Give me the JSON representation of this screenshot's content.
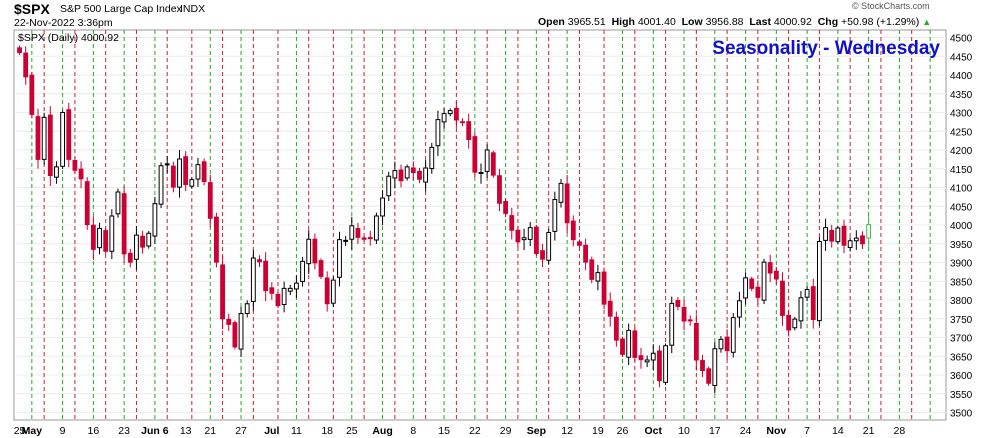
{
  "header": {
    "symbol": "$SPX",
    "name": "S&P 500 Large Cap Index",
    "exchange": "INDX",
    "datetime": "22-Nov-2022 3:36pm",
    "open_label": "Open",
    "open": "3965.51",
    "high_label": "High",
    "high": "4001.40",
    "low_label": "Low",
    "low": "3956.88",
    "last_label": "Last",
    "last": "4000.92",
    "chg_label": "Chg",
    "chg": "+50.98 (+1.29%)",
    "up_arrow": "▲",
    "watermark": "© StockCharts.com"
  },
  "legend": {
    "text": "$SPX (Daily) 4000.92"
  },
  "colors": {
    "up": "#000000",
    "down": "#cc0033",
    "green_line": "#22aa22",
    "red_line": "#cc2222",
    "title": "#1010cc",
    "last_up": "#44bb44"
  },
  "chart_data": {
    "type": "candlestick",
    "title": "Seasonality - Wednesday",
    "ylim": [
      3480,
      4520
    ],
    "y_ticks": [
      3500,
      3550,
      3600,
      3650,
      3700,
      3750,
      3800,
      3850,
      3900,
      3950,
      4000,
      4050,
      4100,
      4150,
      4200,
      4250,
      4300,
      4350,
      4400,
      4450,
      4500
    ],
    "x_tick_labels": [
      "25",
      "May",
      "9",
      "16",
      "23",
      "Jun 6",
      "13",
      "21",
      "27",
      "Jul",
      "11",
      "18",
      "25",
      "Aug",
      "8",
      "15",
      "22",
      "29",
      "Sep",
      "12",
      "19",
      "26",
      "Oct",
      "10",
      "17",
      "24",
      "Nov",
      "7",
      "14",
      "21",
      "28"
    ],
    "month_labels": [
      "May",
      "Jun 6",
      "Jul",
      "Aug",
      "Sep",
      "Oct",
      "Nov"
    ],
    "x_start": "2022-04-21",
    "x_end": "2022-11-22",
    "vertical_lines": {
      "green": "Monday",
      "red": "Wednesday",
      "style": "dashed"
    },
    "close": [
      4460,
      4395,
      4295,
      4175,
      4287,
      4132,
      4155,
      4300,
      4175,
      4146,
      4123,
      4001,
      3935,
      3991,
      3930,
      4024,
      4088,
      3923,
      3901,
      3973,
      3941,
      3978,
      4057,
      4158,
      4163,
      4101,
      4176,
      4108,
      4121,
      4161,
      4116,
      4018,
      3901,
      3750,
      3735,
      3675,
      3764,
      3790,
      3912,
      3902,
      3825,
      3818,
      3785,
      3831,
      3831,
      3845,
      3903,
      3962,
      3899,
      3863,
      3790,
      3853,
      3961,
      3959,
      3998,
      3967,
      3962,
      3966,
      4024,
      4072,
      4130,
      4145,
      4118,
      4155,
      4140,
      4122,
      4152,
      4207,
      4281,
      4297,
      4305,
      4280,
      4274,
      4228,
      4141,
      4140,
      4200,
      4133,
      4058,
      4031,
      3986,
      3955,
      3966,
      3993,
      3924,
      3909,
      3980,
      4068,
      4111,
      4006,
      3961,
      3946,
      3901,
      3855,
      3873,
      3789,
      3757,
      3693,
      3655,
      3719,
      3647,
      3641,
      3640,
      3658,
      3585,
      3678,
      3791,
      3783,
      3744,
      3745,
      3640,
      3612,
      3578,
      3670,
      3695,
      3665,
      3753,
      3798,
      3859,
      3831,
      3807,
      3901,
      3872,
      3856,
      3759,
      3720,
      3749,
      3806,
      3828,
      3748,
      3956,
      3993,
      3957,
      3992,
      3946,
      3958,
      3965,
      3950,
      4001
    ]
  }
}
